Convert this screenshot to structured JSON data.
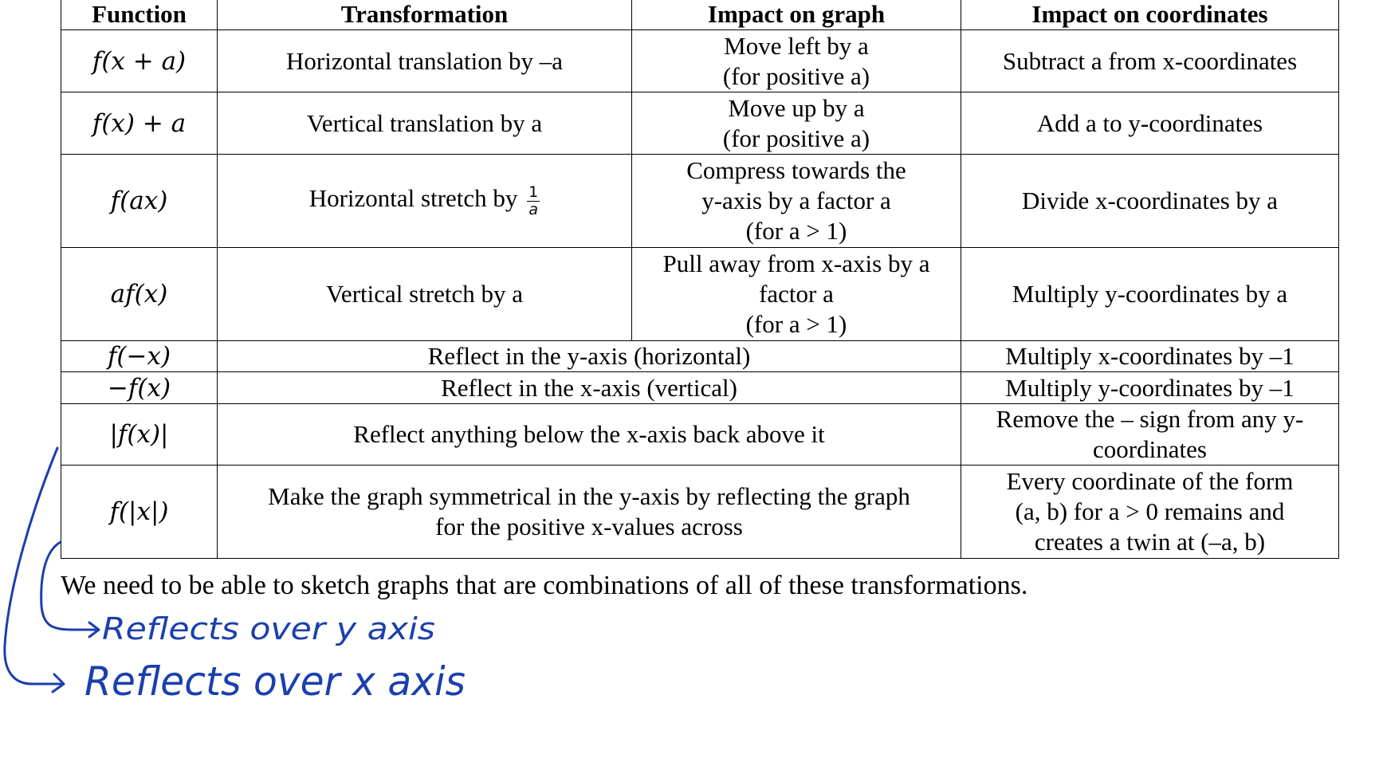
{
  "table": {
    "headers": [
      "Function",
      "Transformation",
      "Impact on graph",
      "Impact on coordinates"
    ],
    "rows": [
      {
        "function": "f(x + a)",
        "transformation": "Horizontal translation by –a",
        "graph": [
          "Move left by a",
          "(for positive a)"
        ],
        "coordinates": [
          "Subtract a from x-coordinates"
        ]
      },
      {
        "function": "f(x) + a",
        "transformation": "Vertical translation by a",
        "graph": [
          "Move up by a",
          "(for positive a)"
        ],
        "coordinates": [
          "Add a to y-coordinates"
        ]
      },
      {
        "function": "f(ax)",
        "transformation": "Horizontal stretch by",
        "transformation_fraction": {
          "num": "1",
          "den": "a"
        },
        "graph": [
          "Compress towards the",
          "y-axis by a factor a",
          "(for a > 1)"
        ],
        "coordinates": [
          "Divide x-coordinates by a"
        ]
      },
      {
        "function": "af(x)",
        "transformation": "Vertical stretch by a",
        "graph": [
          "Pull away from x-axis by a",
          "factor a",
          "(for a > 1)"
        ],
        "coordinates": [
          "Multiply y-coordinates by a"
        ]
      },
      {
        "function": "f(−x)",
        "merged": "Reflect in the y-axis (horizontal)",
        "coordinates": [
          "Multiply x-coordinates by –1"
        ]
      },
      {
        "function": "−f(x)",
        "merged": "Reflect in the x-axis (vertical)",
        "coordinates": [
          "Multiply y-coordinates by –1"
        ]
      },
      {
        "function": "|f(x)|",
        "merged": [
          "Reflect anything below the x-axis back above it"
        ],
        "coordinates": [
          "Remove the – sign from any y-",
          "coordinates"
        ]
      },
      {
        "function": "f(|x|)",
        "merged": [
          "Make the graph symmetrical in the y-axis by reflecting the graph",
          "for the positive x-values across"
        ],
        "coordinates": [
          "Every coordinate of the form",
          "(a, b) for a > 0 remains and",
          "creates a twin at (–a, b)"
        ]
      }
    ]
  },
  "sentence": "We need to be able to sketch graphs that are combinations of all of these transformations.",
  "annotations": {
    "note_1": "Reflects over y axis",
    "note_2": "Reflects over x axis",
    "ink_color": "#1a3fae"
  }
}
